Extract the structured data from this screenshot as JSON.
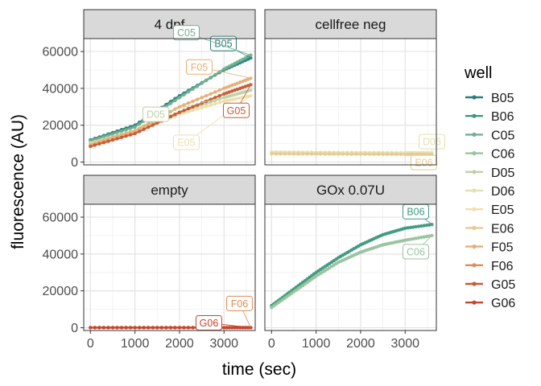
{
  "chart_data": {
    "type": "line",
    "xlabel": "time (sec)",
    "ylabel": "fluorescence (AU)",
    "xlim": [
      -150,
      3700
    ],
    "ylim": [
      -1500,
      67000
    ],
    "xticks": [
      0,
      1000,
      2000,
      3000
    ],
    "xtick_labels": [
      "0",
      "1000",
      "2000",
      "3000"
    ],
    "yticks": [
      0,
      20000,
      40000,
      60000
    ],
    "ytick_labels": [
      "0",
      "20000",
      "40000",
      "60000"
    ],
    "grid": true,
    "legend_title": "well",
    "legend_position": "right",
    "legend": [
      {
        "name": "B05",
        "color": "#2a7e7a"
      },
      {
        "name": "B06",
        "color": "#3f9a7e"
      },
      {
        "name": "C05",
        "color": "#6fb091"
      },
      {
        "name": "C06",
        "color": "#99c3a0"
      },
      {
        "name": "D05",
        "color": "#bcd3a8"
      },
      {
        "name": "D06",
        "color": "#e3e1b0"
      },
      {
        "name": "E05",
        "color": "#f0deab"
      },
      {
        "name": "E06",
        "color": "#e9c98f"
      },
      {
        "name": "F05",
        "color": "#e7ae74"
      },
      {
        "name": "F06",
        "color": "#e08c57"
      },
      {
        "name": "G05",
        "color": "#c95a34"
      },
      {
        "name": "G06",
        "color": "#c4452c"
      }
    ],
    "panels": [
      {
        "title": "4 dpf",
        "series": [
          {
            "name": "B05",
            "x": [
              0,
              1000,
              2000,
              3000,
              3600
            ],
            "y": [
              12000,
              20000,
              36000,
              50000,
              56500
            ]
          },
          {
            "name": "C05",
            "x": [
              0,
              1000,
              2000,
              3000,
              3600
            ],
            "y": [
              11500,
              19000,
              35000,
              50500,
              58000
            ]
          },
          {
            "name": "D05",
            "x": [
              0,
              1000,
              2000,
              3000,
              3600
            ],
            "y": [
              10500,
              17000,
              27000,
              35000,
              39000
            ]
          },
          {
            "name": "E05",
            "x": [
              0,
              1000,
              2000,
              3000,
              3600
            ],
            "y": [
              10000,
              16000,
              26000,
              33000,
              36000
            ]
          },
          {
            "name": "F05",
            "x": [
              0,
              1000,
              2000,
              3000,
              3600
            ],
            "y": [
              9500,
              17000,
              30000,
              40000,
              45500
            ]
          },
          {
            "name": "G05",
            "x": [
              0,
              1000,
              2000,
              3000,
              3600
            ],
            "y": [
              8500,
              15500,
              27000,
              37000,
              42000
            ]
          }
        ],
        "labels": [
          "B05",
          "C05",
          "D05",
          "E05",
          "F05",
          "G05"
        ]
      },
      {
        "title": "cellfree neg",
        "series": [
          {
            "name": "D06",
            "x": [
              0,
              1000,
              2000,
              3000,
              3600
            ],
            "y": [
              5500,
              5300,
              5200,
              5100,
              5000
            ]
          },
          {
            "name": "E06",
            "x": [
              0,
              1000,
              2000,
              3000,
              3600
            ],
            "y": [
              4500,
              4400,
              4300,
              4200,
              4100
            ]
          }
        ],
        "labels": [
          "D06",
          "E06"
        ]
      },
      {
        "title": "empty",
        "series": [
          {
            "name": "F06",
            "x": [
              0,
              1000,
              2000,
              3000,
              3600
            ],
            "y": [
              100,
              100,
              100,
              100,
              100
            ]
          },
          {
            "name": "G06",
            "x": [
              0,
              1000,
              2000,
              3000,
              3600
            ],
            "y": [
              50,
              50,
              50,
              50,
              50
            ]
          }
        ],
        "labels": [
          "F06",
          "G06"
        ]
      },
      {
        "title": "GOx 0.07U",
        "series": [
          {
            "name": "B06",
            "x": [
              0,
              500,
              1000,
              1500,
              2000,
              2500,
              3000,
              3600
            ],
            "y": [
              12000,
              21000,
              30000,
              38000,
              45000,
              50500,
              54000,
              56000
            ]
          },
          {
            "name": "C06",
            "x": [
              0,
              500,
              1000,
              1500,
              2000,
              2500,
              3000,
              3600
            ],
            "y": [
              11000,
              19500,
              28000,
              35500,
              41000,
              45000,
              47500,
              50000
            ]
          }
        ],
        "labels": [
          "B06",
          "C06"
        ]
      }
    ]
  }
}
